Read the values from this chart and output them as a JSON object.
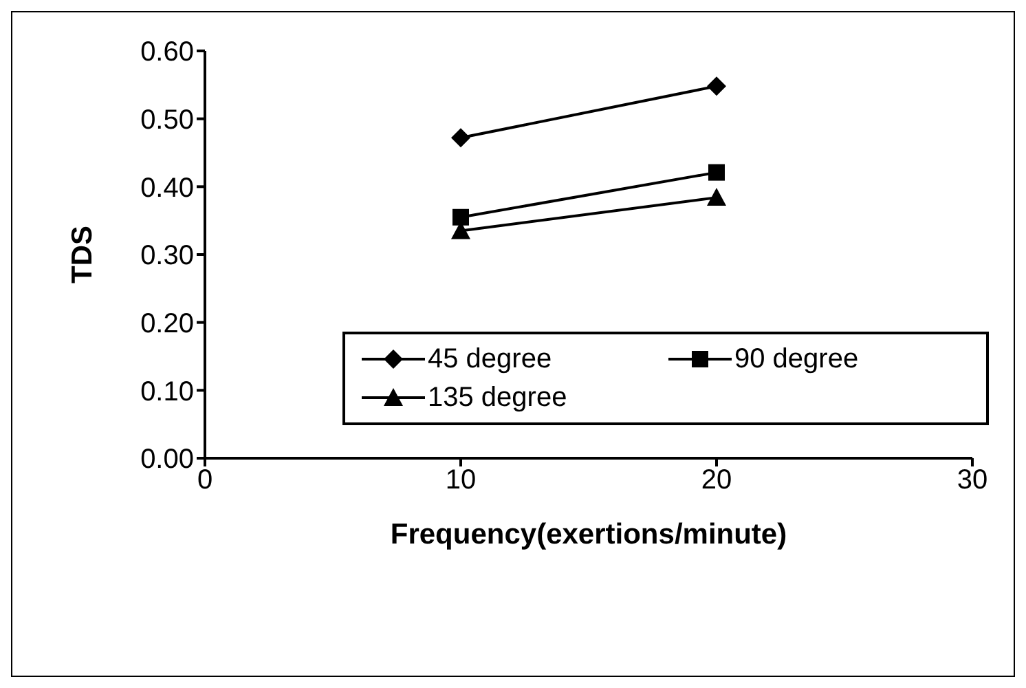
{
  "chart_data": {
    "type": "line",
    "xlabel": "Frequency(exertions/minute)",
    "ylabel": "TDS",
    "xlim": [
      0,
      30
    ],
    "xticks": [
      0,
      10,
      20,
      30
    ],
    "ylim": [
      0,
      0.6
    ],
    "yticks": [
      {
        "value": 0,
        "label": "0.00"
      },
      {
        "value": 0.1,
        "label": "0.10"
      },
      {
        "value": 0.2,
        "label": "0.20"
      },
      {
        "value": 0.3,
        "label": "0.30"
      },
      {
        "value": 0.4,
        "label": "0.40"
      },
      {
        "value": 0.5,
        "label": "0.50"
      },
      {
        "value": 0.6,
        "label": "0.60"
      }
    ],
    "x": [
      10,
      20
    ],
    "series": [
      {
        "name": "45 degree",
        "color": "#000000",
        "marker": "diamond",
        "values": [
          0.472,
          0.548
        ]
      },
      {
        "name": "90 degree",
        "color": "#000000",
        "marker": "square",
        "values": [
          0.355,
          0.421
        ]
      },
      {
        "name": "135 degree",
        "color": "#000000",
        "marker": "triangle",
        "values": [
          0.335,
          0.384
        ]
      }
    ],
    "grid": false,
    "legend": "bottom",
    "line_style": "solid"
  }
}
